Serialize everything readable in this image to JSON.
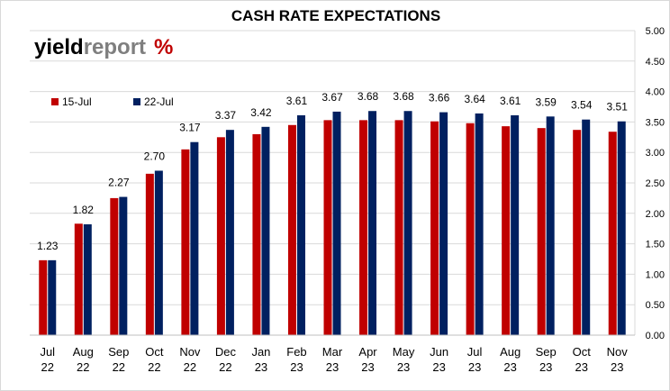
{
  "chart_data": {
    "type": "bar",
    "title": "CASH RATE EXPECTATIONS",
    "categories": [
      "Jul\n22",
      "Aug\n22",
      "Sep\n22",
      "Oct\n22",
      "Nov\n22",
      "Dec\n22",
      "Jan\n23",
      "Feb\n23",
      "Mar\n23",
      "Apr\n23",
      "May\n23",
      "Jun\n23",
      "Jul\n23",
      "Aug\n23",
      "Sep\n23",
      "Oct\n23",
      "Nov\n23"
    ],
    "series": [
      {
        "name": "15-Jul",
        "color": "#C00000",
        "values": [
          1.23,
          1.83,
          2.25,
          2.65,
          3.05,
          3.25,
          3.3,
          3.45,
          3.53,
          3.53,
          3.53,
          3.51,
          3.48,
          3.43,
          3.4,
          3.37,
          3.34
        ]
      },
      {
        "name": "22-Jul",
        "color": "#002060",
        "values": [
          1.23,
          1.82,
          2.27,
          2.7,
          3.17,
          3.37,
          3.42,
          3.61,
          3.67,
          3.68,
          3.68,
          3.66,
          3.64,
          3.61,
          3.59,
          3.54,
          3.51
        ]
      }
    ],
    "data_labels": [
      "1.23",
      "1.82",
      "2.27",
      "2.70",
      "3.17",
      "3.37",
      "3.42",
      "3.61",
      "3.67",
      "3.68",
      "3.68",
      "3.66",
      "3.64",
      "3.61",
      "3.59",
      "3.54",
      "3.51"
    ],
    "ylim": [
      0,
      5
    ],
    "yticks": [
      "0.00",
      "0.50",
      "1.00",
      "1.50",
      "2.00",
      "2.50",
      "3.00",
      "3.50",
      "4.00",
      "4.50",
      "5.00"
    ],
    "y_axis_side": "right",
    "grid": "horizontal",
    "legend": "top-left"
  },
  "logo": {
    "prefix": "yield",
    "suffix": "report",
    "symbol": "%"
  }
}
